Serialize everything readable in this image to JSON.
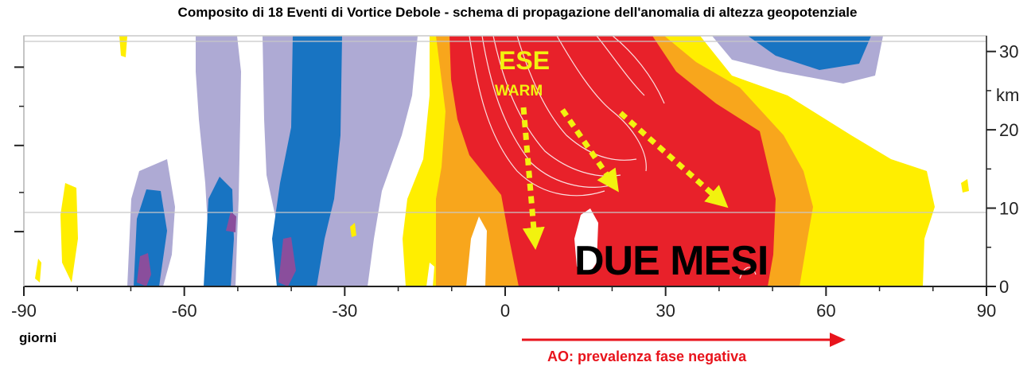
{
  "title": "Composito di 18 Eventi di Vortice Debole - schema di propagazione dell'anomalia di altezza geopotenziale",
  "chart_data": {
    "type": "heatmap",
    "title": "Composito di 18 Eventi di Vortice Debole - schema di propagazione dell'anomalia di altezza geopotenziale",
    "xlabel": "giorni",
    "ylabel": "km",
    "xlim": [
      -90,
      90
    ],
    "ylim": [
      0,
      32
    ],
    "x_ticks": [
      -90,
      -60,
      -30,
      0,
      30,
      60,
      90
    ],
    "x_tick_labels": [
      "-90",
      "-60",
      "-30",
      "0",
      "30",
      "60",
      "90"
    ],
    "y_ticks": [
      0,
      10,
      20,
      30
    ],
    "y_tick_labels": [
      "0",
      "10",
      "20",
      "30"
    ],
    "y_unit_label": "km",
    "grid": true,
    "gridlines_y_km": [
      10,
      30
    ],
    "color_classes": [
      {
        "name": "strong negative",
        "color": "#8a4e9c"
      },
      {
        "name": "negative",
        "color": "#1874c2"
      },
      {
        "name": "weak negative",
        "color": "#aeaad4"
      },
      {
        "name": "weak positive",
        "color": "#ffee00"
      },
      {
        "name": "positive",
        "color": "#f8a61c"
      },
      {
        "name": "strong positive",
        "color": "#e8212a"
      }
    ],
    "annotations": {
      "ese": "ESE",
      "warm": "WARM",
      "duration": "DUE MESI",
      "ao": "AO: prevalenza fase negativa"
    },
    "ao_arrow_days": [
      3,
      63
    ]
  }
}
